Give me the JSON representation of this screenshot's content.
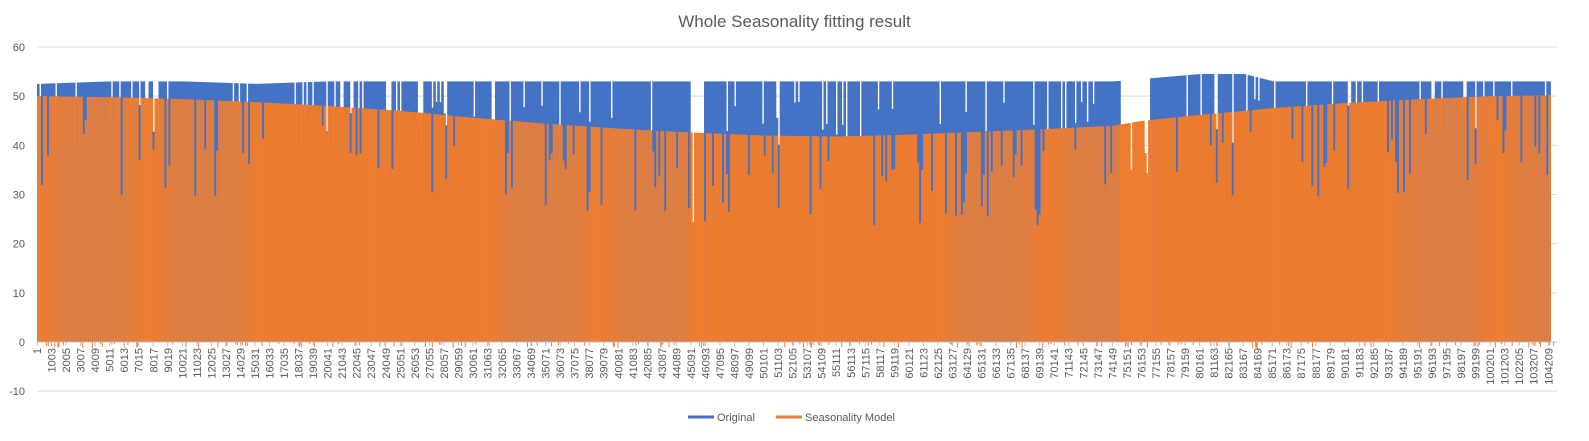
{
  "chart_data": {
    "type": "bar",
    "title": "Whole Seasonality fitting result",
    "xlabel": "",
    "ylabel": "",
    "ylim": [
      -10,
      60
    ],
    "y_ticks": [
      "-10",
      "0",
      "10",
      "20",
      "30",
      "40",
      "50",
      "60"
    ],
    "x_tick_labels": [
      "1",
      "1003",
      "2005",
      "3007",
      "4009",
      "5011",
      "6013",
      "7015",
      "8017",
      "9019",
      "10021",
      "11023",
      "12025",
      "13027",
      "14029",
      "15031",
      "16033",
      "17035",
      "18037",
      "19039",
      "20041",
      "21043",
      "22045",
      "23047",
      "24049",
      "25051",
      "26053",
      "27055",
      "28057",
      "29059",
      "30061",
      "31063",
      "32065",
      "33067",
      "34069",
      "35071",
      "36073",
      "37075",
      "38077",
      "39079",
      "40081",
      "41083",
      "42085",
      "43087",
      "44089",
      "45091",
      "46093",
      "47095",
      "48097",
      "49099",
      "50101",
      "51103",
      "52105",
      "53107",
      "54109",
      "55111",
      "56113",
      "57115",
      "58117",
      "59119",
      "60121",
      "61123",
      "62125",
      "63127",
      "64129",
      "65131",
      "66133",
      "67135",
      "68137",
      "69139",
      "70141",
      "71143",
      "72145",
      "73147",
      "74149",
      "75151",
      "76153",
      "77155",
      "78157",
      "79159",
      "80161",
      "81163",
      "82165",
      "83167",
      "84169",
      "85171",
      "86173",
      "87175",
      "88177",
      "89179",
      "90181",
      "91183",
      "92185",
      "93187",
      "94189",
      "95191",
      "96193",
      "97195",
      "98197",
      "99199",
      "100201",
      "101203",
      "102205",
      "103207",
      "104209"
    ],
    "x_tick_step": 1002,
    "grid": true,
    "legend_position": "bottom",
    "series": [
      {
        "name": "Original",
        "color": "#4472C4",
        "x": [
          1,
          5011,
          10021,
          15031,
          20041,
          25051,
          30061,
          35071,
          40081,
          45091,
          50101,
          55111,
          60121,
          65131,
          70141,
          74149,
          76153,
          80161,
          83167,
          85171,
          90181,
          95191,
          100201,
          104209
        ],
        "values": [
          52.5,
          53,
          53,
          52.5,
          53,
          53,
          53,
          53,
          53,
          53,
          53,
          53,
          53,
          53,
          53,
          53,
          53.5,
          54.5,
          54.5,
          53,
          53,
          53,
          53,
          53
        ]
      },
      {
        "name": "Seasonality Model",
        "color": "#ED7D31",
        "x": [
          1,
          5011,
          10021,
          15031,
          20041,
          25051,
          30061,
          35071,
          40081,
          45091,
          50101,
          55111,
          60121,
          65131,
          70141,
          74149,
          76153,
          80161,
          83167,
          85171,
          90181,
          95191,
          100201,
          104209
        ],
        "values": [
          50,
          49.8,
          49.4,
          48.8,
          48,
          47,
          45.6,
          44.4,
          43.4,
          42.6,
          42,
          41.8,
          42.2,
          42.8,
          43.4,
          44,
          45,
          46.2,
          47,
          47.6,
          48.6,
          49.4,
          50,
          50.2
        ]
      }
    ]
  }
}
